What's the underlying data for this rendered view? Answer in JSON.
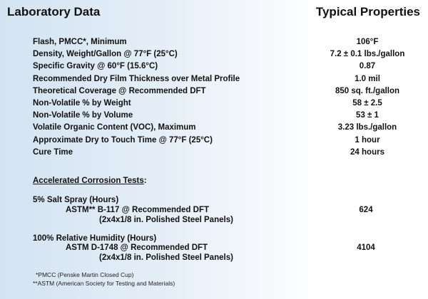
{
  "headers": {
    "left": "Laboratory Data",
    "right": "Typical Properties"
  },
  "properties": [
    {
      "label": "Flash, PMCC*, Minimum",
      "value": "106°F"
    },
    {
      "label": "Density, Weight/Gallon @ 77°F (25°C)",
      "value": "7.2 ± 0.1 lbs./gallon"
    },
    {
      "label": "Specific Gravity @ 60°F (15.6°C)",
      "value": "0.87"
    },
    {
      "label": "Recommended Dry Film Thickness over Metal Profile",
      "value": "1.0 mil"
    },
    {
      "label": "Theoretical Coverage @ Recommended DFT",
      "value": "850 sq. ft./gallon"
    },
    {
      "label": "Non-Volatile % by Weight",
      "value": "58 ± 2.5"
    },
    {
      "label": "Non-Volatile % by Volume",
      "value": "53 ± 1"
    },
    {
      "label": "Volatile Organic Content (VOC), Maximum",
      "value": "3.23 lbs./gallon"
    },
    {
      "label": "Approximate Dry to Touch Time @ 77°F (25°C)",
      "value": "1 hour"
    },
    {
      "label": "Cure Time",
      "value": "24 hours"
    }
  ],
  "corrosion": {
    "heading": "Accelerated Corrosion Tests",
    "heading_suffix": ":",
    "tests": [
      {
        "title": "5% Salt Spray (Hours)",
        "method": "ASTM** B-117 @ Recommended DFT",
        "panels": "(2x4x1/8 in. Polished Steel Panels)",
        "value": "624"
      },
      {
        "title": "100% Relative Humidity (Hours)",
        "method": "ASTM D-1748 @ Recommended DFT",
        "panels": "(2x4x1/8 in. Polished Steel Panels)",
        "value": "4104"
      }
    ]
  },
  "footnotes": [
    "*PMCC (Penske Martin Closed Cup)",
    "**ASTM (American Society for Testing and Materials)"
  ]
}
